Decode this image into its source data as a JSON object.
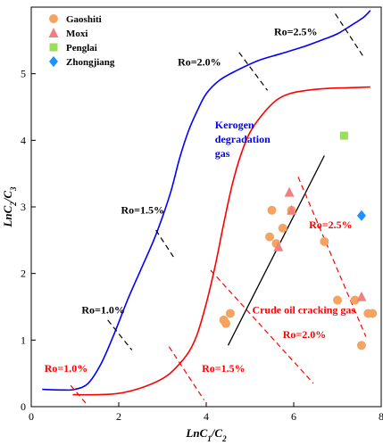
{
  "chart_data": {
    "type": "scatter",
    "xlim": [
      0,
      8
    ],
    "ylim": [
      0,
      6
    ],
    "x_ticks": [
      "0",
      "2",
      "4",
      "6",
      "8"
    ],
    "y_ticks": [
      "0",
      "1",
      "2",
      "3",
      "4",
      "5"
    ],
    "xlabel": {
      "main": "LnC",
      "sub1": "1",
      "sep": "/C",
      "sub2": "2"
    },
    "ylabel": {
      "main": "LnC",
      "sub1": "2",
      "sep": "/C",
      "sub2": "3"
    },
    "legend_position": "top-left",
    "series": [
      {
        "name": "Gaoshiti",
        "marker": "circle",
        "color": "#F4A460",
        "points": [
          [
            4.4,
            1.3
          ],
          [
            4.45,
            1.25
          ],
          [
            4.55,
            1.4
          ],
          [
            5.45,
            2.55
          ],
          [
            5.5,
            2.95
          ],
          [
            5.6,
            2.45
          ],
          [
            5.75,
            2.68
          ],
          [
            5.95,
            2.95
          ],
          [
            6.7,
            2.48
          ],
          [
            7.0,
            1.6
          ],
          [
            7.4,
            1.6
          ],
          [
            7.55,
            0.92
          ],
          [
            7.7,
            1.4
          ],
          [
            7.8,
            1.4
          ]
        ]
      },
      {
        "name": "Moxi",
        "marker": "triangle",
        "color": "#F08080",
        "points": [
          [
            5.65,
            2.4
          ],
          [
            5.9,
            3.22
          ],
          [
            5.95,
            2.95
          ],
          [
            7.55,
            1.65
          ]
        ]
      },
      {
        "name": "Penglai",
        "marker": "square",
        "color": "#99E05A",
        "points": [
          [
            7.15,
            4.07
          ]
        ]
      },
      {
        "name": "Zhongjiang",
        "marker": "diamond",
        "color": "#1E90FF",
        "points": [
          [
            7.55,
            2.87
          ]
        ]
      }
    ],
    "curves": [
      {
        "label": "Kerogen degradation gas",
        "color": "#0000FF",
        "points": [
          [
            0.25,
            0.26
          ],
          [
            0.7,
            0.25
          ],
          [
            1.0,
            0.26
          ],
          [
            1.3,
            0.35
          ],
          [
            1.6,
            0.65
          ],
          [
            1.9,
            1.1
          ],
          [
            2.2,
            1.6
          ],
          [
            2.5,
            2.05
          ],
          [
            2.8,
            2.5
          ],
          [
            3.0,
            2.85
          ],
          [
            3.2,
            3.25
          ],
          [
            3.4,
            3.75
          ],
          [
            3.6,
            4.15
          ],
          [
            3.8,
            4.45
          ],
          [
            4.0,
            4.7
          ],
          [
            4.3,
            4.9
          ],
          [
            4.7,
            5.05
          ],
          [
            5.2,
            5.2
          ],
          [
            5.7,
            5.3
          ],
          [
            6.2,
            5.4
          ],
          [
            6.7,
            5.52
          ],
          [
            7.0,
            5.6
          ],
          [
            7.3,
            5.72
          ],
          [
            7.6,
            5.85
          ],
          [
            7.75,
            5.95
          ]
        ]
      },
      {
        "label": "Crude oil cracking gas",
        "color": "#FF0000",
        "points": [
          [
            0.95,
            0.18
          ],
          [
            1.5,
            0.18
          ],
          [
            2.0,
            0.2
          ],
          [
            2.5,
            0.28
          ],
          [
            3.0,
            0.42
          ],
          [
            3.3,
            0.58
          ],
          [
            3.6,
            0.82
          ],
          [
            3.8,
            1.1
          ],
          [
            4.0,
            1.55
          ],
          [
            4.2,
            2.1
          ],
          [
            4.4,
            2.75
          ],
          [
            4.6,
            3.35
          ],
          [
            4.8,
            3.8
          ],
          [
            5.0,
            4.12
          ],
          [
            5.3,
            4.4
          ],
          [
            5.6,
            4.6
          ],
          [
            5.9,
            4.7
          ],
          [
            6.3,
            4.75
          ],
          [
            6.8,
            4.78
          ],
          [
            7.3,
            4.79
          ],
          [
            7.75,
            4.8
          ]
        ]
      }
    ],
    "trend_line": {
      "color": "#000000",
      "points": [
        [
          4.5,
          0.92
        ],
        [
          6.7,
          3.77
        ]
      ]
    },
    "ro_markers": [
      {
        "text": "Ro=1.0%",
        "color": "#FF0000",
        "line": [
          [
            0.9,
            0.32
          ],
          [
            1.25,
            0.05
          ]
        ],
        "label_pos": [
          0.3,
          0.52
        ]
      },
      {
        "text": "Ro=1.5%",
        "color": "#FF0000",
        "line": [
          [
            3.15,
            0.9
          ],
          [
            3.95,
            0.1
          ]
        ],
        "label_pos": [
          3.9,
          0.52
        ]
      },
      {
        "text": "Ro=2.0%",
        "color": "#FF0000",
        "line": [
          [
            4.1,
            2.05
          ],
          [
            6.45,
            0.35
          ]
        ],
        "label_pos": [
          5.75,
          1.03
        ]
      },
      {
        "text": "Ro=2.5%",
        "color": "#FF0000",
        "line": [
          [
            6.1,
            3.45
          ],
          [
            7.65,
            1.05
          ]
        ],
        "label_pos": [
          6.35,
          2.68
        ]
      },
      {
        "text": "Ro=1.0%",
        "color": "#000000",
        "line": [
          [
            1.75,
            1.3
          ],
          [
            2.3,
            0.85
          ]
        ],
        "label_pos": [
          1.15,
          1.4
        ]
      },
      {
        "text": "Ro=1.5%",
        "color": "#000000",
        "line": [
          [
            2.85,
            2.65
          ],
          [
            3.25,
            2.25
          ]
        ],
        "label_pos": [
          2.05,
          2.9
        ]
      },
      {
        "text": "Ro=2.0%",
        "color": "#000000",
        "line": [
          [
            4.75,
            5.32
          ],
          [
            5.4,
            4.75
          ]
        ],
        "label_pos": [
          3.35,
          5.12
        ]
      },
      {
        "text": "Ro=2.5%",
        "color": "#000000",
        "line": [
          [
            6.95,
            5.9
          ],
          [
            7.6,
            5.25
          ]
        ],
        "label_pos": [
          5.55,
          5.58
        ]
      }
    ],
    "annotations": [
      {
        "lines": [
          "Kerogen",
          "degradation",
          "gas"
        ],
        "color": "#0000FF",
        "pos": [
          4.2,
          4.18
        ]
      },
      {
        "lines": [
          "Crude oil cracking gas"
        ],
        "color": "#FF0000",
        "pos": [
          5.05,
          1.4
        ]
      }
    ]
  }
}
